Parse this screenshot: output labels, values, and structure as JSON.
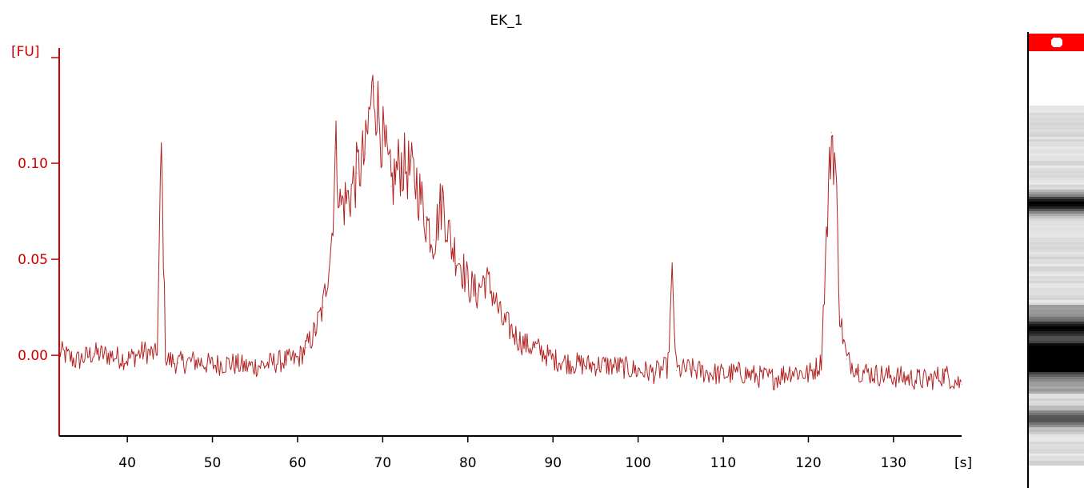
{
  "chart_data": {
    "type": "line",
    "title": "EK_1",
    "xlabel": "[s]",
    "ylabel": "[FU]",
    "xlim": [
      32,
      138
    ],
    "ylim": [
      -0.042,
      0.16
    ],
    "xticks": [
      40,
      50,
      60,
      70,
      80,
      90,
      100,
      110,
      120,
      130
    ],
    "xtick_labels": [
      "40",
      "50",
      "60",
      "70",
      "80",
      "90",
      "100",
      "110",
      "120",
      "130"
    ],
    "yticks": [
      0.0,
      0.05,
      0.1
    ],
    "ytick_labels": [
      "0.00",
      "0.05",
      "0.10"
    ],
    "grid": false,
    "legend": "none",
    "axis_color": "#cc0000",
    "trace_color": "#b22222",
    "series": [
      {
        "x": [
          32,
          34,
          36,
          38,
          40,
          42,
          43.5,
          44,
          44.5,
          46,
          48,
          50,
          52,
          54,
          56,
          58,
          60,
          61,
          62,
          63,
          64,
          64.5,
          65,
          66,
          67,
          68,
          68.5,
          69,
          70,
          71,
          72,
          73,
          74,
          75,
          76,
          77,
          78,
          79,
          80,
          81,
          82,
          83,
          84,
          85,
          86,
          87,
          88,
          90,
          92,
          94,
          96,
          98,
          100,
          102,
          103.5,
          104,
          104.5,
          106,
          108,
          110,
          112,
          114,
          116,
          118,
          120,
          121.5,
          122,
          122.7,
          123.2,
          123.7,
          124.5,
          126,
          128,
          130,
          132,
          134,
          136,
          138
        ],
        "y": [
          0.002,
          -0.003,
          0.001,
          0.0,
          -0.002,
          0.002,
          0.0,
          0.108,
          -0.002,
          -0.004,
          -0.003,
          -0.005,
          -0.004,
          -0.006,
          -0.005,
          -0.003,
          -0.002,
          0.004,
          0.012,
          0.025,
          0.06,
          0.108,
          0.078,
          0.082,
          0.095,
          0.105,
          0.128,
          0.14,
          0.112,
          0.088,
          0.1,
          0.097,
          0.09,
          0.072,
          0.06,
          0.082,
          0.058,
          0.05,
          0.038,
          0.032,
          0.04,
          0.032,
          0.018,
          0.014,
          0.008,
          0.005,
          0.004,
          -0.002,
          -0.004,
          -0.005,
          -0.005,
          -0.006,
          -0.008,
          -0.009,
          -0.006,
          0.04,
          -0.008,
          -0.007,
          -0.009,
          -0.01,
          -0.009,
          -0.011,
          -0.012,
          -0.008,
          -0.01,
          -0.004,
          0.048,
          0.116,
          0.098,
          0.02,
          -0.002,
          -0.008,
          -0.01,
          -0.011,
          -0.012,
          -0.013,
          -0.01,
          -0.015
        ]
      }
    ]
  },
  "gel": {
    "marker_color": "#ff0000",
    "bands": [
      {
        "pos": 0.27,
        "intensity": 0.9
      },
      {
        "pos": 0.62,
        "intensity": 0.6
      },
      {
        "pos": 0.68,
        "intensity": 0.85
      },
      {
        "pos": 0.72,
        "intensity": 0.95
      },
      {
        "pos": 0.87,
        "intensity": 0.55
      }
    ]
  }
}
